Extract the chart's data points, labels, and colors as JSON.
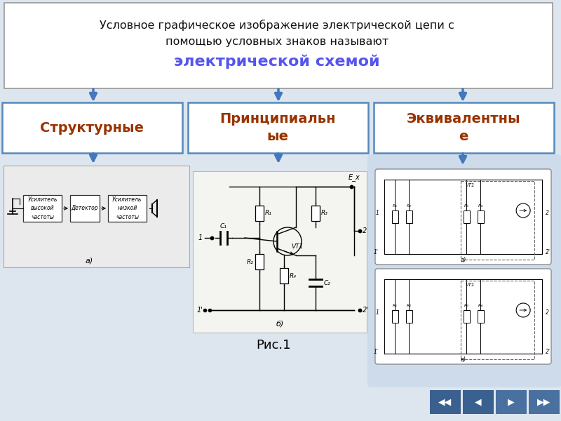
{
  "title_line1": "Условное графическое изображение электрической цепи с",
  "title_line2": "помощью условных знаков называют",
  "title_line3": "электрической схемой",
  "title_line3_color": "#5555ee",
  "title_box_color": "#ffffff",
  "title_border_color": "#999999",
  "background_color": "#dde5ef",
  "box_border_color": "#5588bb",
  "box_fill_color": "#ffffff",
  "arrow_color": "#4477bb",
  "cat1_text": "Структурные",
  "cat2_line1": "Принципиальн",
  "cat2_line2": "ые",
  "cat3_line1": "Эквивалентны",
  "cat3_line2": "е",
  "cat_text_color": "#993300",
  "ris_label": "Рис.1",
  "nav_btn_colors": [
    "#3a6090",
    "#3a6090",
    "#4a70a0",
    "#4a70a0"
  ],
  "struct_bg": "#e8e8e0",
  "schematic_bg": "#f0f0ec",
  "equiv_bg": "#dde5ef",
  "title_fontsize": 11.5,
  "title3_fontsize": 16,
  "cat_fontsize": 14
}
